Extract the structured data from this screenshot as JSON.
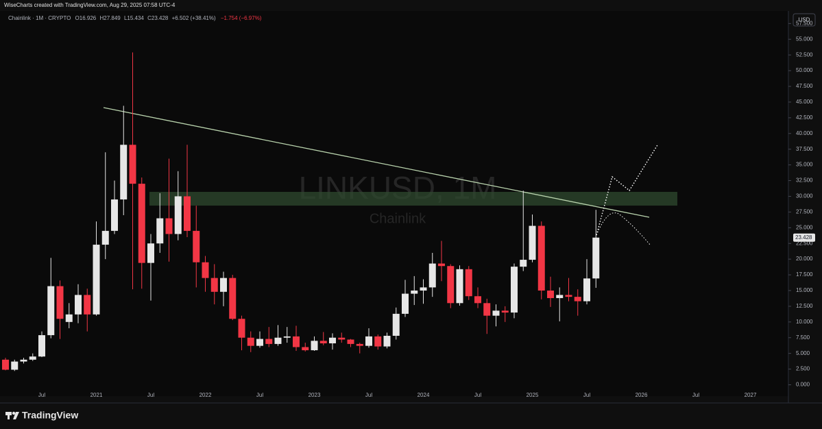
{
  "chart_data": {
    "type": "candlestick",
    "header": "WiseCharts created with TradingView.com, Aug 29, 2025 07:58 UTC-4",
    "symbol": "Chainlink · 1M · CRYPTO",
    "ohlc_labels": [
      "O16.926",
      "H27.849",
      "L15.434",
      "C23.428"
    ],
    "change": "+6.502 (+38.41%)",
    "change_after": "−1.754 (−6.97%)",
    "watermark": "LINKUSD, 1M",
    "watermark_name": "Chainlink",
    "currency": "USD",
    "logo": "TradingView",
    "up_color": "#e6e6e6",
    "down_color": "#f23645",
    "last_price": {
      "value": 23.428,
      "label": "23.428"
    },
    "x_labels": [
      "Jul",
      "2021",
      "Jul",
      "2022",
      "Jul",
      "2023",
      "Jul",
      "2024",
      "Jul",
      "2025",
      "Jul",
      "2026",
      "Jul",
      "2027"
    ],
    "ylim": [
      -1.8,
      59.5
    ],
    "yticks": [
      {
        "value": 0,
        "label": "0.000"
      },
      {
        "value": 2.5,
        "label": "2.500"
      },
      {
        "value": 5,
        "label": "5.000"
      },
      {
        "value": 7.5,
        "label": "7.500"
      },
      {
        "value": 10,
        "label": "10.000"
      },
      {
        "value": 12.5,
        "label": "12.500"
      },
      {
        "value": 15,
        "label": "15.000"
      },
      {
        "value": 17.5,
        "label": "17.500"
      },
      {
        "value": 20,
        "label": "20.000"
      },
      {
        "value": 22.5,
        "label": "22.500"
      },
      {
        "value": 25,
        "label": "25.000"
      },
      {
        "value": 27.5,
        "label": "27.500"
      },
      {
        "value": 30,
        "label": "30.000"
      },
      {
        "value": 32.5,
        "label": "32.500"
      },
      {
        "value": 35,
        "label": "35.000"
      },
      {
        "value": 37.5,
        "label": "37.500"
      },
      {
        "value": 40,
        "label": "40.000"
      },
      {
        "value": 42.5,
        "label": "42.500"
      },
      {
        "value": 45,
        "label": "45.000"
      },
      {
        "value": 47.5,
        "label": "47.500"
      },
      {
        "value": 50,
        "label": "50.000"
      },
      {
        "value": 52.5,
        "label": "52.500"
      },
      {
        "value": 55,
        "label": "55.000"
      },
      {
        "value": 57.5,
        "label": "57.500"
      }
    ],
    "open": [
      4.0,
      2.4,
      3.7,
      4.0,
      4.5,
      7.9,
      15.7,
      10.0,
      11.2,
      14.3,
      11.2,
      22.3,
      24.5,
      29.5,
      38.2,
      32.0,
      19.4,
      22.5,
      26.5,
      24.0,
      30.0,
      24.5,
      19.5,
      17.0,
      14.8,
      17.0,
      10.5,
      7.5,
      6.2,
      7.3,
      6.5,
      7.5,
      7.7,
      6.0,
      5.5,
      7.0,
      6.6,
      7.5,
      7.2,
      6.5,
      6.2,
      7.7,
      6.1,
      7.8,
      11.3,
      14.5,
      15.0,
      15.5,
      19.3,
      18.9,
      13.0,
      18.4,
      14.1,
      13.0,
      11.0,
      11.8,
      11.5,
      18.8,
      19.9,
      25.3,
      15.0,
      13.8,
      14.3,
      14.0,
      13.3,
      16.926
    ],
    "high": [
      4.3,
      4.0,
      4.3,
      5.0,
      8.5,
      20.2,
      16.6,
      13.0,
      16.0,
      15.3,
      26.0,
      37.0,
      32.5,
      44.4,
      52.9,
      33.0,
      24.0,
      30.5,
      36.0,
      34.0,
      38.2,
      28.5,
      20.5,
      19.2,
      18.0,
      17.5,
      11.0,
      8.5,
      8.5,
      9.2,
      9.5,
      9.2,
      9.4,
      6.7,
      7.7,
      8.4,
      8.2,
      8.3,
      7.3,
      6.7,
      9.0,
      8.0,
      8.3,
      12.3,
      16.7,
      17.3,
      16.8,
      21.0,
      22.9,
      19.2,
      19.0,
      18.9,
      15.5,
      13.7,
      12.8,
      12.5,
      19.3,
      30.9,
      27.1,
      26.0,
      17.2,
      15.5,
      17.0,
      15.2,
      20.0,
      27.849
    ],
    "low": [
      2.3,
      2.2,
      3.4,
      3.8,
      4.4,
      7.4,
      7.3,
      9.0,
      9.8,
      8.5,
      11.0,
      20.0,
      24.0,
      27.0,
      15.2,
      15.3,
      13.4,
      21.0,
      19.6,
      23.0,
      23.5,
      15.5,
      14.8,
      12.8,
      12.5,
      10.3,
      5.5,
      5.2,
      5.9,
      6.0,
      6.2,
      6.7,
      5.4,
      5.3,
      5.4,
      6.3,
      5.6,
      6.7,
      6.0,
      5.0,
      5.9,
      5.6,
      5.8,
      7.2,
      10.8,
      12.7,
      12.9,
      14.0,
      16.5,
      12.2,
      12.6,
      13.5,
      12.2,
      8.1,
      9.3,
      10.0,
      10.6,
      18.1,
      19.5,
      13.6,
      12.4,
      10.1,
      13.3,
      11.0,
      12.8,
      15.434
    ],
    "close": [
      2.4,
      3.7,
      4.0,
      4.5,
      7.9,
      15.7,
      10.5,
      11.2,
      14.3,
      11.2,
      22.3,
      24.5,
      29.5,
      38.2,
      32.0,
      19.4,
      22.5,
      26.5,
      24.0,
      30.0,
      24.5,
      19.5,
      17.0,
      14.8,
      17.0,
      10.5,
      7.5,
      6.2,
      7.3,
      6.5,
      7.5,
      7.7,
      6.0,
      5.5,
      7.0,
      6.6,
      7.5,
      7.2,
      6.5,
      6.2,
      7.7,
      6.1,
      7.8,
      11.3,
      14.5,
      15.0,
      15.5,
      19.3,
      18.9,
      13.0,
      18.4,
      14.1,
      13.0,
      11.0,
      11.8,
      11.5,
      18.8,
      19.9,
      25.3,
      15.0,
      13.8,
      14.3,
      14.0,
      13.3,
      16.926,
      23.428
    ]
  }
}
